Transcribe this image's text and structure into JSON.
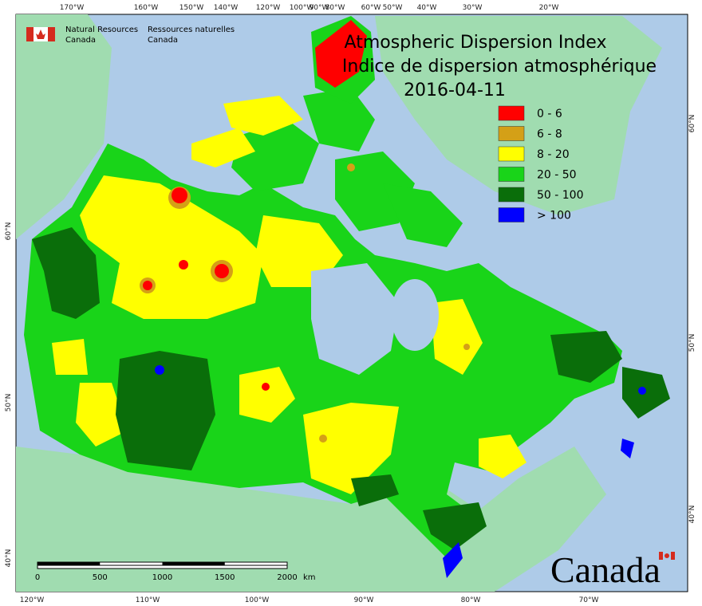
{
  "header": {
    "agency_en": [
      "Natural Resources",
      "Canada"
    ],
    "agency_fr": [
      "Ressources naturelles",
      "Canada"
    ]
  },
  "title": {
    "en": "Atmospheric Dispersion Index",
    "fr": "Indice de dispersion atmosphérique",
    "date": "2016-04-11"
  },
  "legend": [
    {
      "label": "0 - 6",
      "color": "#ff0000"
    },
    {
      "label": "6 - 8",
      "color": "#d4a017"
    },
    {
      "label": "8 - 20",
      "color": "#ffff00"
    },
    {
      "label": "20 - 50",
      "color": "#19d419"
    },
    {
      "label": "50 - 100",
      "color": "#0a6e0a"
    },
    {
      "label": "> 100",
      "color": "#0000ff"
    }
  ],
  "graticule": {
    "top": [
      "170°W",
      "160°W",
      "150°W",
      "140°W",
      "120°W",
      "100°W",
      "90°W",
      "80°W",
      "60°W",
      "50°W",
      "40°W",
      "30°W",
      "20°W"
    ],
    "bottom": [
      "120°W",
      "110°W",
      "100°W",
      "90°W",
      "80°W",
      "70°W"
    ],
    "left": [
      "60°N",
      "50°N",
      "40°N"
    ],
    "right": [
      "60°N",
      "50°N",
      "40°N"
    ]
  },
  "scale_bar": {
    "ticks": [
      "0",
      "500",
      "1000",
      "1500",
      "2000"
    ],
    "unit": "km"
  },
  "wordmark": "Canada"
}
